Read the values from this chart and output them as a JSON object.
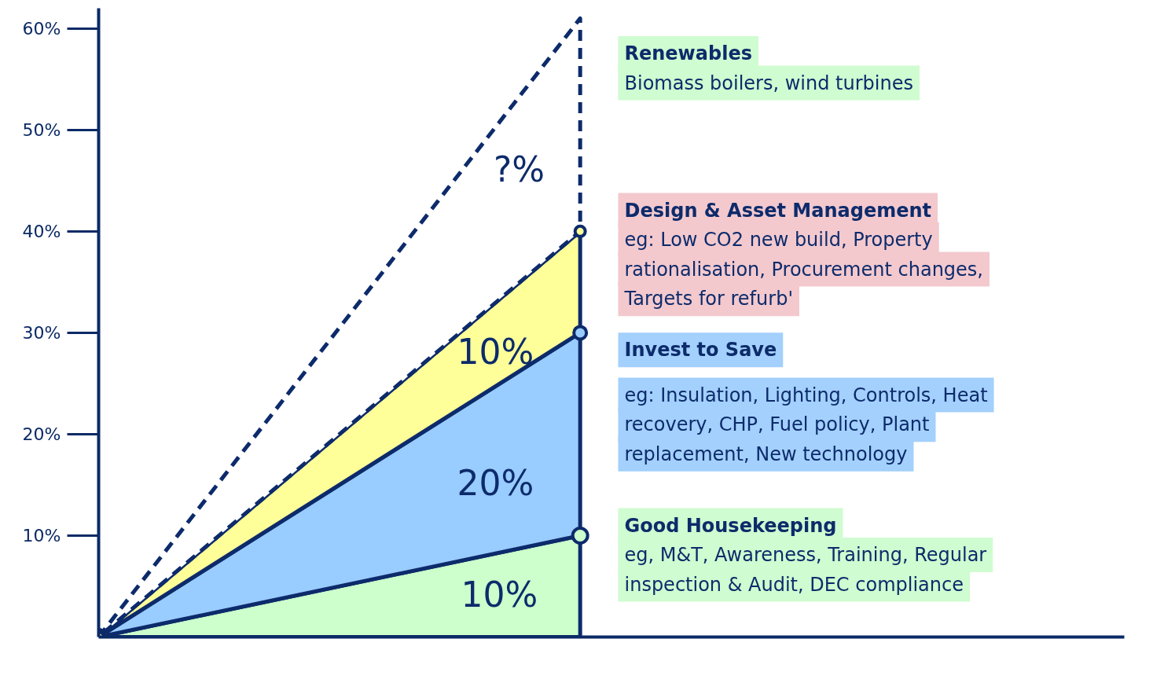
{
  "chart_data": {
    "type": "area",
    "stacked": true,
    "categories": [
      null,
      null
    ],
    "ylim": [
      0,
      62
    ],
    "yticks": [
      {
        "value": 10,
        "label": "10%"
      },
      {
        "value": 20,
        "label": "20%"
      },
      {
        "value": 30,
        "label": "30%"
      },
      {
        "value": 40,
        "label": "40%"
      },
      {
        "value": 50,
        "label": "50%"
      },
      {
        "value": 60,
        "label": "60%"
      }
    ],
    "tick_labels": "y",
    "marker": "circle",
    "series": [
      {
        "color": "#ccffcc",
        "values": [
          0,
          10
        ]
      },
      {
        "color": "#99ccff",
        "values": [
          0,
          20
        ]
      },
      {
        "color": "#ffff99",
        "values": [
          0,
          10
        ]
      },
      {
        "color": "#ffffff",
        "values": [
          0,
          21
        ],
        "line_style": "dashed",
        "marker": "none"
      }
    ],
    "annotations": [
      "?%",
      "10%",
      "20%",
      "10%",
      "Renewables\nBiomass boilers, wind turbines",
      "Design & Asset Management\neg: Low CO2 new build, Property\nrationalisation, Procurement changes,\nTargets for refurb'",
      "Invest to Save\n\neg: Insulation, Lighting, Controls, Heat\nrecovery, CHP, Fuel policy, Plant\nreplacement, New technology",
      "Good Housekeeping\neg, M&T, Awareness, Training, Regular\ninspection & Audit, DEC compliance"
    ]
  }
}
